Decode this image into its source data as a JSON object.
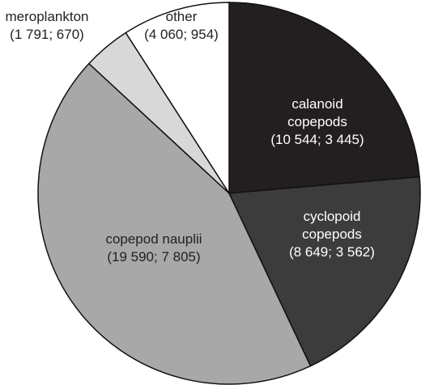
{
  "chart_data": {
    "type": "pie",
    "categories": [
      "calanoid copepods",
      "cyclopoid copepods",
      "copepod nauplii",
      "meroplankton",
      "other"
    ],
    "values": [
      10544,
      8649,
      19590,
      1791,
      4060
    ],
    "value_labels": [
      "(10 544; 3 445)",
      "(8 649; 3 562)",
      "(19 590; 7 805)",
      "(1 791; 670)",
      "(4 060; 954)"
    ],
    "colors": [
      "#231f20",
      "#3c3c3c",
      "#a8a8a8",
      "#d8d8d8",
      "#ffffff"
    ]
  }
}
